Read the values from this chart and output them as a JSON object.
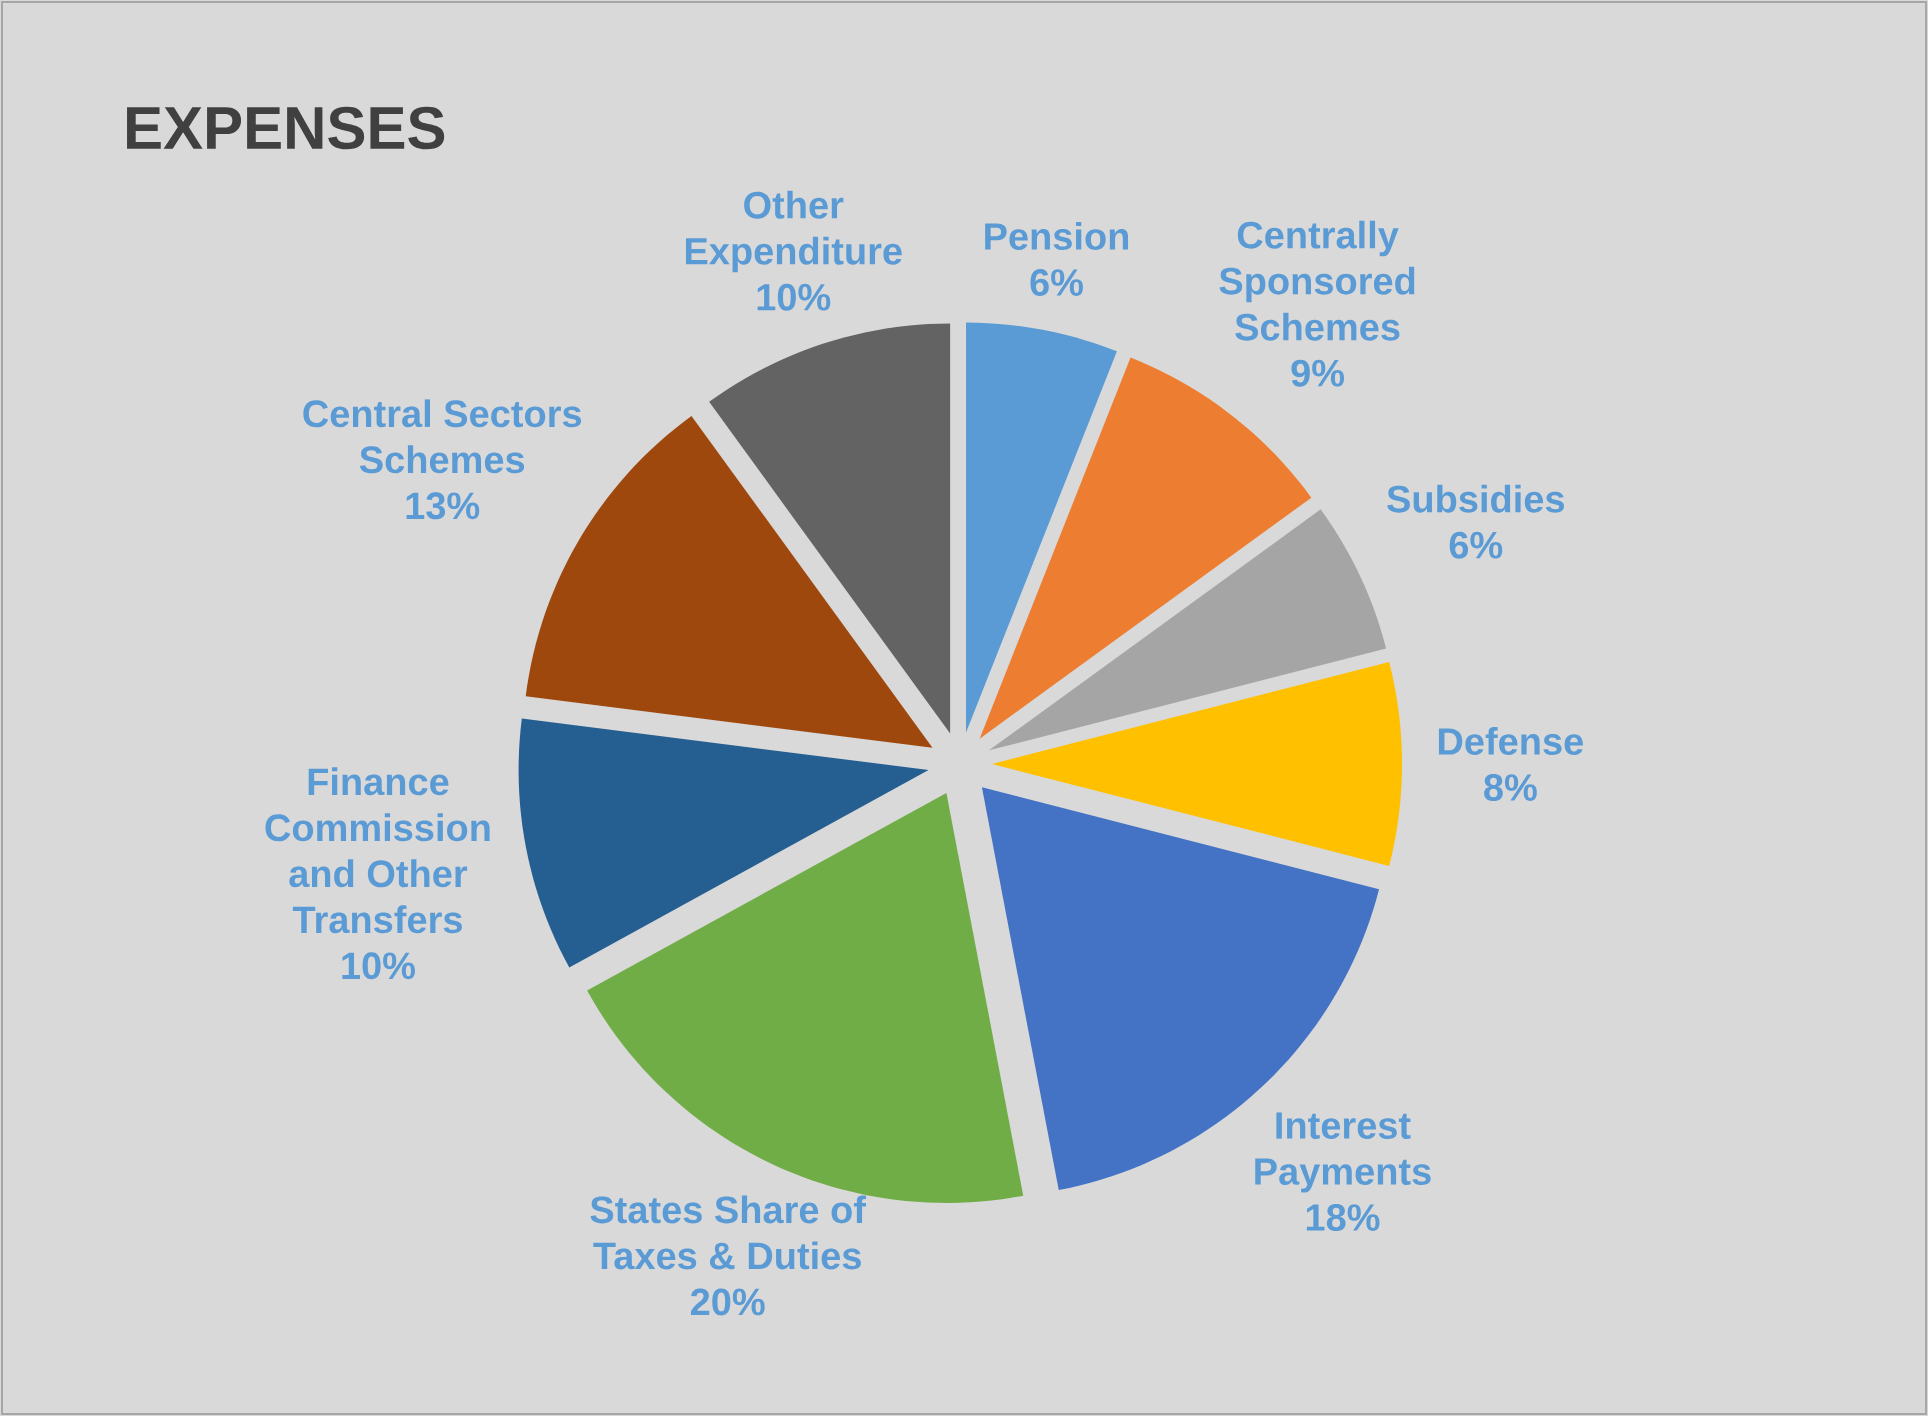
{
  "chart_data": {
    "type": "pie",
    "title": "EXPENSES",
    "categories": [
      "Pension",
      "Centrally Sponsored Schemes",
      "Subsidies",
      "Defense",
      "Interest Payments",
      "States Share of Taxes & Duties",
      "Finance Commission and Other Transfers",
      "Central Sectors Schemes",
      "Other Expenditure"
    ],
    "values": [
      6,
      9,
      6,
      8,
      18,
      20,
      10,
      13,
      10
    ],
    "colors": [
      "#5b9bd5",
      "#ed7d31",
      "#a5a5a5",
      "#ffc000",
      "#4472c4",
      "#70ad47",
      "#255e91",
      "#9e480e",
      "#636363"
    ],
    "value_labels": [
      "6%",
      "9%",
      "6%",
      "8%",
      "18%",
      "20%",
      "10%",
      "13%",
      "10%"
    ]
  }
}
